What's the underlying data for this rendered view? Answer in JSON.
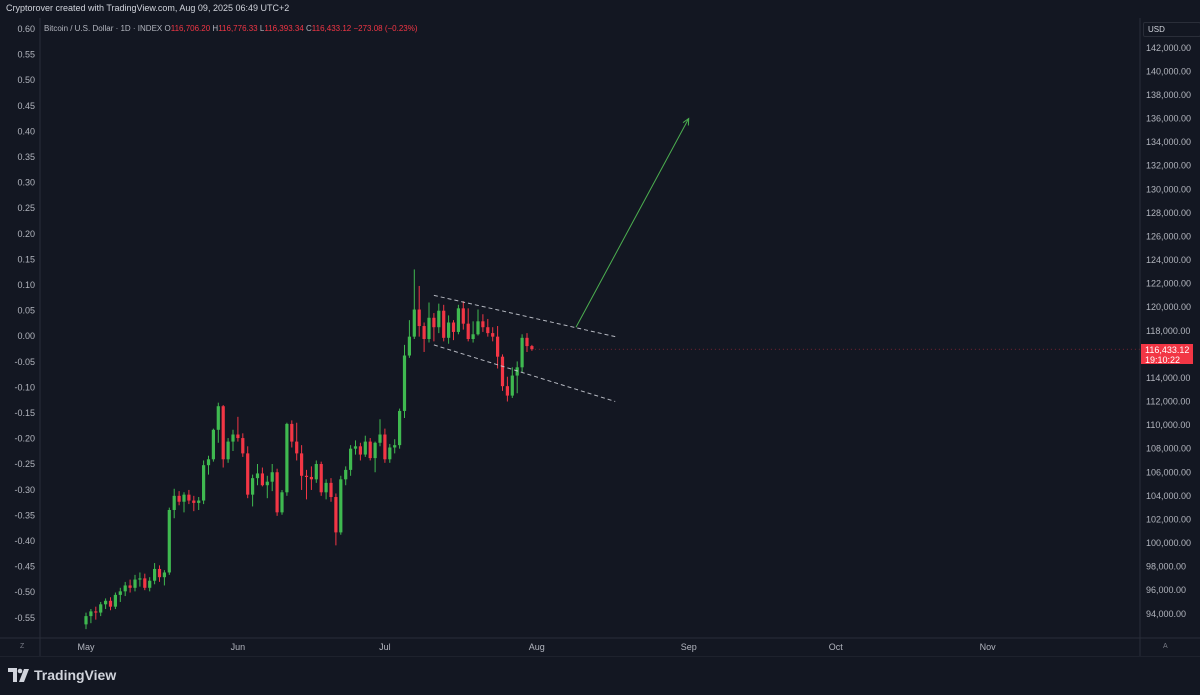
{
  "header": {
    "credit": "Cryptorover created with TradingView.com, Aug 09, 2025 06:49 UTC+2",
    "symbol": "Bitcoin / U.S. Dollar · 1D · INDEX",
    "open_label": "O",
    "open": "116,706.20",
    "high_label": "H",
    "high": "116,776.33",
    "low_label": "L",
    "low": "116,393.34",
    "close_label": "C",
    "close": "116,433.12",
    "change": "−273.08 (−0.23%)"
  },
  "price_axis": {
    "currency": "USD",
    "last_price": "116,433.12",
    "countdown": "19:10:22"
  },
  "corner_left": "Z",
  "corner_right": "A",
  "brand": "TradingView",
  "colors": {
    "bg": "#131722",
    "up": "#26a69a",
    "up_green": "#3fb950",
    "down": "#f23645",
    "grid_text": "#b2b5be",
    "arrow": "#4caf50",
    "channel": "#d1d4dc"
  },
  "chart_data": {
    "type": "candlestick",
    "title": "Bitcoin / U.S. Dollar · 1D · INDEX",
    "left_axis_ticks": [
      "0.60",
      "0.55",
      "0.50",
      "0.45",
      "0.40",
      "0.35",
      "0.30",
      "0.25",
      "0.20",
      "0.15",
      "0.10",
      "0.05",
      "0.00",
      "-0.05",
      "-0.10",
      "-0.15",
      "-0.20",
      "-0.25",
      "-0.30",
      "-0.35",
      "-0.40",
      "-0.45",
      "-0.50",
      "-0.55"
    ],
    "right_axis_ticks": [
      "142,000.00",
      "140,000.00",
      "138,000.00",
      "136,000.00",
      "134,000.00",
      "132,000.00",
      "130,000.00",
      "128,000.00",
      "126,000.00",
      "124,000.00",
      "122,000.00",
      "120,000.00",
      "118,000.00",
      "116,000.00",
      "114,000.00",
      "112,000.00",
      "110,000.00",
      "108,000.00",
      "106,000.00",
      "104,000.00",
      "102,000.00",
      "100,000.00",
      "98,000.00",
      "96,000.00",
      "94,000.00"
    ],
    "right_axis_values": [
      142000,
      140000,
      138000,
      136000,
      134000,
      132000,
      130000,
      128000,
      126000,
      124000,
      122000,
      120000,
      118000,
      116000,
      114000,
      112000,
      110000,
      108000,
      106000,
      104000,
      102000,
      100000,
      98000,
      96000,
      94000
    ],
    "x_labels": [
      "May",
      "Jun",
      "Jul",
      "Aug",
      "Sep",
      "Oct",
      "Nov"
    ],
    "x_label_days": [
      0,
      31,
      61,
      92,
      123,
      153,
      184
    ],
    "start_date": "2025-04-21",
    "candles": [
      [
        93100,
        94100,
        92700,
        93800
      ],
      [
        93800,
        94400,
        93200,
        94200
      ],
      [
        94200,
        94600,
        93500,
        94100
      ],
      [
        94100,
        95000,
        93800,
        94800
      ],
      [
        94800,
        95300,
        94400,
        95100
      ],
      [
        95100,
        95400,
        94300,
        94600
      ],
      [
        94600,
        95800,
        94400,
        95600
      ],
      [
        95600,
        96200,
        95000,
        95900
      ],
      [
        95900,
        96700,
        95500,
        96400
      ],
      [
        96400,
        96900,
        95800,
        96200
      ],
      [
        96200,
        97300,
        95900,
        96900
      ],
      [
        96900,
        97500,
        96300,
        97000
      ],
      [
        97000,
        97400,
        96000,
        96200
      ],
      [
        96200,
        97100,
        95900,
        96800
      ],
      [
        96800,
        98300,
        96500,
        97800
      ],
      [
        97800,
        98100,
        96700,
        97100
      ],
      [
        97100,
        97700,
        96400,
        97500
      ],
      [
        97500,
        103000,
        97300,
        102800
      ],
      [
        102800,
        104600,
        102100,
        104000
      ],
      [
        104000,
        104400,
        103200,
        103500
      ],
      [
        103500,
        104300,
        102600,
        104100
      ],
      [
        104100,
        104500,
        103300,
        103600
      ],
      [
        103600,
        104000,
        102700,
        103400
      ],
      [
        103400,
        103900,
        102800,
        103600
      ],
      [
        103600,
        107000,
        103300,
        106600
      ],
      [
        106600,
        107400,
        105800,
        107100
      ],
      [
        107100,
        109700,
        106900,
        109600
      ],
      [
        109600,
        111900,
        108500,
        111600
      ],
      [
        111600,
        111700,
        106400,
        107100
      ],
      [
        107100,
        108900,
        106800,
        108600
      ],
      [
        108600,
        109600,
        107800,
        109200
      ],
      [
        109200,
        110700,
        108600,
        108900
      ],
      [
        108900,
        109300,
        107300,
        107600
      ],
      [
        107600,
        108200,
        103800,
        104100
      ],
      [
        104100,
        105800,
        103100,
        105500
      ],
      [
        105500,
        106700,
        104900,
        105900
      ],
      [
        105900,
        106400,
        104800,
        104900
      ],
      [
        104900,
        105700,
        103800,
        105200
      ],
      [
        105200,
        106700,
        104400,
        106000
      ],
      [
        106000,
        106300,
        102300,
        102600
      ],
      [
        102600,
        104500,
        102400,
        104300
      ],
      [
        104300,
        110200,
        104000,
        110100
      ],
      [
        110100,
        110400,
        108100,
        108600
      ],
      [
        108600,
        110200,
        107000,
        107600
      ],
      [
        107600,
        108300,
        104500,
        105700
      ],
      [
        105700,
        106200,
        103700,
        105600
      ],
      [
        105600,
        106500,
        104500,
        105400
      ],
      [
        105400,
        107000,
        105100,
        106700
      ],
      [
        106700,
        106900,
        104000,
        104300
      ],
      [
        104300,
        105400,
        103700,
        105100
      ],
      [
        105100,
        105500,
        103500,
        103900
      ],
      [
        103900,
        104200,
        99800,
        100900
      ],
      [
        100900,
        105700,
        100700,
        105400
      ],
      [
        105400,
        106500,
        104900,
        106200
      ],
      [
        106200,
        108300,
        105700,
        108000
      ],
      [
        108000,
        108700,
        107500,
        108200
      ],
      [
        108200,
        108500,
        107000,
        107500
      ],
      [
        107500,
        109100,
        107300,
        108600
      ],
      [
        108600,
        108900,
        107000,
        107200
      ],
      [
        107200,
        108600,
        106000,
        108500
      ],
      [
        108500,
        110500,
        108200,
        109200
      ],
      [
        109200,
        109700,
        106800,
        107100
      ],
      [
        107100,
        108400,
        106800,
        108100
      ],
      [
        108100,
        108800,
        107600,
        108300
      ],
      [
        108300,
        111400,
        108000,
        111200
      ],
      [
        111200,
        116800,
        110600,
        115900
      ],
      [
        115900,
        118900,
        115700,
        117500
      ],
      [
        117500,
        123200,
        117300,
        119800
      ],
      [
        119800,
        121800,
        117500,
        118400
      ],
      [
        118400,
        118700,
        116200,
        117300
      ],
      [
        117300,
        120400,
        117000,
        119100
      ],
      [
        119100,
        119500,
        117100,
        118300
      ],
      [
        118300,
        120300,
        117800,
        119700
      ],
      [
        119700,
        120200,
        117100,
        117400
      ],
      [
        117400,
        119300,
        116900,
        118700
      ],
      [
        118700,
        118900,
        117200,
        117900
      ],
      [
        117900,
        120200,
        117700,
        119900
      ],
      [
        119900,
        120500,
        118100,
        118600
      ],
      [
        118600,
        119900,
        117100,
        117300
      ],
      [
        117300,
        118800,
        117000,
        117700
      ],
      [
        117700,
        119800,
        117600,
        118800
      ],
      [
        118800,
        119400,
        117900,
        118300
      ],
      [
        118300,
        119000,
        117500,
        117800
      ],
      [
        117800,
        118300,
        117100,
        117500
      ],
      [
        117500,
        118400,
        114800,
        115800
      ],
      [
        115800,
        116000,
        112900,
        113300
      ],
      [
        113300,
        114100,
        112000,
        112500
      ],
      [
        112500,
        114900,
        112300,
        114200
      ],
      [
        114200,
        115400,
        112700,
        114900
      ],
      [
        114900,
        117700,
        114500,
        117400
      ],
      [
        117400,
        117800,
        116200,
        116700
      ],
      [
        116700,
        116800,
        116300,
        116433
      ]
    ],
    "trendlines": [
      {
        "name": "channel-upper",
        "from": [
          71,
          121000
        ],
        "to": [
          108,
          117500
        ]
      },
      {
        "name": "channel-lower",
        "from": [
          71,
          116800
        ],
        "to": [
          108,
          112000
        ]
      }
    ],
    "projection_arrow": {
      "from": [
        100,
        118300
      ],
      "to": [
        123,
        136000
      ]
    }
  }
}
